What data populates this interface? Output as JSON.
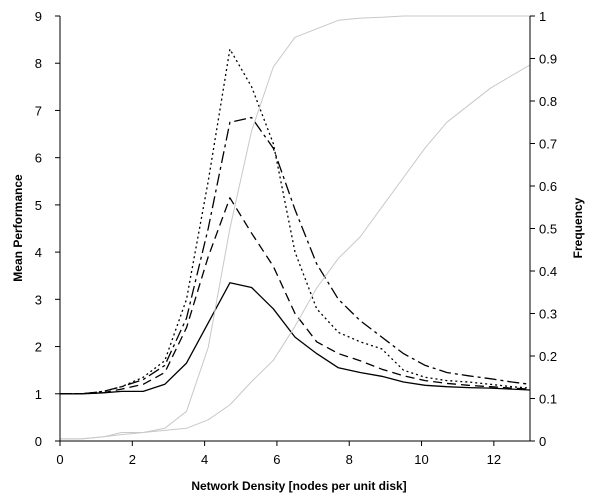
{
  "chart_data": {
    "type": "line",
    "xlabel": "Network Density [nodes per unit disk]",
    "ylabel": "Mean Performance",
    "y2label": "Frequency",
    "xlim": [
      0,
      13
    ],
    "ylim": [
      0,
      9
    ],
    "y2lim": [
      0,
      1
    ],
    "xticks": [
      "0",
      "2",
      "4",
      "6",
      "8",
      "10",
      "12"
    ],
    "yticks": [
      "0",
      "1",
      "2",
      "3",
      "4",
      "5",
      "6",
      "7",
      "8",
      "9"
    ],
    "y2ticks": [
      "0",
      "0.1",
      "0.2",
      "0.3",
      "0.4",
      "0.5",
      "0.6",
      "0.7",
      "0.8",
      "0.9",
      "1"
    ],
    "grid": false,
    "legend": "none",
    "series": [
      {
        "axis": "left",
        "style": "solid",
        "color": "#000000",
        "x": [
          0,
          0.6,
          1.2,
          1.7,
          2.3,
          2.9,
          3.5,
          4.1,
          4.7,
          5.3,
          5.9,
          6.5,
          7.1,
          7.7,
          8.3,
          8.9,
          9.5,
          10.1,
          10.7,
          11.3,
          11.9,
          12.5,
          13
        ],
        "y": [
          1.0,
          1.0,
          1.02,
          1.05,
          1.05,
          1.2,
          1.65,
          2.5,
          3.35,
          3.25,
          2.8,
          2.2,
          1.85,
          1.55,
          1.45,
          1.37,
          1.25,
          1.18,
          1.15,
          1.13,
          1.12,
          1.1,
          1.08
        ]
      },
      {
        "axis": "left",
        "style": "dashed",
        "color": "#000000",
        "x": [
          0,
          0.6,
          1.2,
          1.7,
          2.3,
          2.9,
          3.5,
          4.1,
          4.7,
          5.3,
          5.9,
          6.5,
          7.1,
          7.7,
          8.3,
          8.9,
          9.5,
          10.1,
          10.7,
          11.3,
          11.9,
          12.5,
          13
        ],
        "y": [
          1.0,
          1.0,
          1.02,
          1.1,
          1.2,
          1.45,
          2.4,
          3.9,
          5.15,
          4.4,
          3.7,
          2.7,
          2.1,
          1.85,
          1.7,
          1.52,
          1.38,
          1.28,
          1.22,
          1.18,
          1.15,
          1.12,
          1.1
        ]
      },
      {
        "axis": "left",
        "style": "longdash",
        "color": "#000000",
        "x": [
          0,
          0.6,
          1.2,
          1.7,
          2.3,
          2.9,
          3.5,
          4.1,
          4.7,
          5.3,
          5.9,
          6.5,
          7.1,
          7.7,
          8.3,
          8.9,
          9.5,
          10.1,
          10.7,
          11.3,
          11.9,
          12.5,
          13
        ],
        "y": [
          1.0,
          1.0,
          1.05,
          1.15,
          1.3,
          1.6,
          2.6,
          4.5,
          6.75,
          6.85,
          6.2,
          4.9,
          3.75,
          3.0,
          2.55,
          2.2,
          1.85,
          1.6,
          1.45,
          1.38,
          1.32,
          1.25,
          1.2
        ]
      },
      {
        "axis": "left",
        "style": "dotted",
        "color": "#000000",
        "x": [
          0,
          0.6,
          1.2,
          1.7,
          2.3,
          2.9,
          3.5,
          4.1,
          4.7,
          5.3,
          5.9,
          6.5,
          7.1,
          7.7,
          8.3,
          8.9,
          9.5,
          10.1,
          10.7,
          11.3,
          11.9,
          12.5,
          13
        ],
        "y": [
          1.0,
          1.0,
          1.05,
          1.15,
          1.35,
          1.7,
          3.0,
          5.5,
          8.3,
          7.5,
          6.3,
          4.0,
          2.8,
          2.3,
          2.1,
          1.95,
          1.5,
          1.35,
          1.28,
          1.25,
          1.2,
          1.15,
          1.12
        ]
      },
      {
        "axis": "right",
        "style": "solid",
        "color": "#c8c8c8",
        "x": [
          0,
          0.6,
          1.2,
          1.7,
          2.3,
          2.9,
          3.5,
          4.1,
          4.7,
          5.3,
          5.9,
          6.5,
          7.1,
          7.7,
          8.3,
          8.9,
          9.5,
          10.1,
          10.7,
          11.3,
          11.9,
          12.5,
          13
        ],
        "y": [
          0.005,
          0.005,
          0.01,
          0.02,
          0.02,
          0.03,
          0.07,
          0.22,
          0.5,
          0.73,
          0.88,
          0.95,
          0.97,
          0.99,
          0.995,
          0.997,
          1.0,
          1.0,
          1.0,
          1.0,
          1.0,
          1.0,
          1.0
        ]
      },
      {
        "axis": "right",
        "style": "solid",
        "color": "#c8c8c8",
        "x": [
          0,
          0.6,
          1.2,
          1.7,
          2.3,
          2.9,
          3.5,
          4.1,
          4.7,
          5.3,
          5.9,
          6.5,
          7.1,
          7.7,
          8.3,
          8.9,
          9.5,
          10.1,
          10.7,
          11.3,
          11.9,
          12.5,
          13
        ],
        "y": [
          0.005,
          0.005,
          0.01,
          0.015,
          0.02,
          0.025,
          0.03,
          0.05,
          0.085,
          0.14,
          0.19,
          0.27,
          0.36,
          0.43,
          0.48,
          0.55,
          0.62,
          0.69,
          0.75,
          0.79,
          0.83,
          0.86,
          0.885
        ]
      }
    ]
  }
}
